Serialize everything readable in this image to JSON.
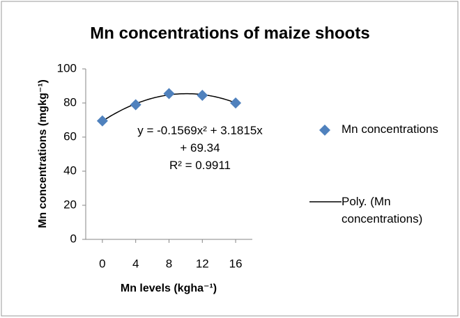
{
  "chart_data": {
    "type": "scatter",
    "title": "Mn concentrations of maize shoots",
    "x_label": "Mn levels (kgha⁻¹)",
    "y_label": "Mn concentrations (mgkg⁻¹)",
    "series": [
      {
        "name": "Mn concentrations",
        "color": "#4f81bd",
        "x": [
          0,
          4,
          8,
          12,
          16
        ],
        "values": [
          69.5,
          79,
          85.5,
          84.5,
          80
        ]
      }
    ],
    "trendline": {
      "name": "Poly. (Mn concentrations)",
      "color": "#000000",
      "coefficients": [
        -0.1569,
        3.1815,
        69.34
      ],
      "equation": "y = -0.1569x² + 3.1815x + 69.34",
      "r_squared": "R² = 0.9911"
    },
    "xlim": [
      -2,
      18
    ],
    "xticks": [
      0,
      4,
      8,
      12,
      16
    ],
    "ylim": [
      0,
      100
    ],
    "yticks": [
      0,
      20,
      40,
      60,
      80,
      100
    ],
    "grid": false,
    "legend": "right"
  }
}
